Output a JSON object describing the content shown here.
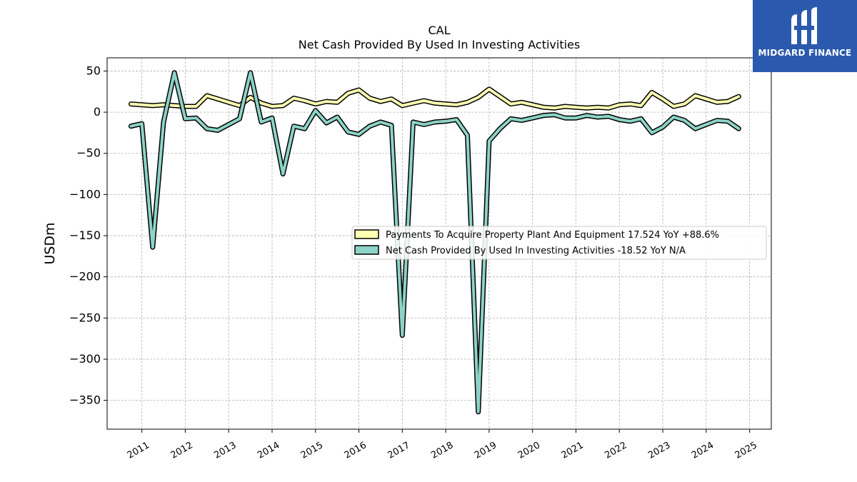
{
  "logo": {
    "text": "MIDGARD FINANCE"
  },
  "chart_data": {
    "type": "line",
    "title": "CAL",
    "subtitle": "Net Cash Provided By Used In Investing Activities",
    "ylabel": "USDm",
    "xlabel": "",
    "ylim": [
      -385,
      66
    ],
    "xlim": [
      2010.2,
      2025.5
    ],
    "yticks": [
      50,
      0,
      -50,
      -100,
      -150,
      -200,
      -250,
      -300,
      -350
    ],
    "ytick_labels": [
      "50",
      "0",
      "−50",
      "−100",
      "−150",
      "−200",
      "−250",
      "−300",
      "−350"
    ],
    "xticks": [
      2011,
      2012,
      2013,
      2014,
      2015,
      2016,
      2017,
      2018,
      2019,
      2020,
      2021,
      2022,
      2023,
      2024,
      2025
    ],
    "xtick_labels": [
      "2011",
      "2012",
      "2013",
      "2014",
      "2015",
      "2016",
      "2017",
      "2018",
      "2019",
      "2020",
      "2021",
      "2022",
      "2023",
      "2024",
      "2025"
    ],
    "grid": true,
    "legend_position": "center-right",
    "series": [
      {
        "name": "Payments To Acquire Property Plant And Equipment  17.524 YoY +88.6%",
        "color": "#ffffb3",
        "x": [
          2010.75,
          2011.0,
          2011.25,
          2011.5,
          2011.75,
          2012.0,
          2012.25,
          2012.5,
          2012.75,
          2013.0,
          2013.25,
          2013.5,
          2013.75,
          2014.0,
          2014.25,
          2014.5,
          2014.75,
          2015.0,
          2015.25,
          2015.5,
          2015.75,
          2016.0,
          2016.25,
          2016.5,
          2016.75,
          2017.0,
          2017.25,
          2017.5,
          2017.75,
          2018.0,
          2018.25,
          2018.5,
          2018.75,
          2019.0,
          2019.25,
          2019.5,
          2019.75,
          2020.0,
          2020.25,
          2020.5,
          2020.75,
          2021.0,
          2021.25,
          2021.5,
          2021.75,
          2022.0,
          2022.25,
          2022.5,
          2022.75,
          2023.0,
          2023.25,
          2023.5,
          2023.75,
          2024.0,
          2024.25,
          2024.5,
          2024.75
        ],
        "y": [
          10,
          9,
          8,
          9,
          8,
          7,
          7,
          20,
          16,
          12,
          8,
          18,
          11,
          7,
          8,
          17,
          14,
          10,
          13,
          12,
          23,
          27,
          17,
          13,
          16,
          8,
          11,
          14,
          11,
          10,
          9,
          12,
          18,
          28,
          19,
          10,
          12,
          9,
          6,
          5,
          7,
          6,
          5,
          6,
          5,
          9,
          10,
          8,
          24,
          16,
          7,
          10,
          20,
          16,
          12,
          13,
          19
        ]
      },
      {
        "name": "Net Cash Provided By Used In Investing Activities  -18.52 YoY N/A",
        "color": "#8dd3c7",
        "x": [
          2010.75,
          2011.0,
          2011.25,
          2011.5,
          2011.75,
          2012.0,
          2012.25,
          2012.5,
          2012.75,
          2013.0,
          2013.25,
          2013.5,
          2013.75,
          2014.0,
          2014.25,
          2014.5,
          2014.75,
          2015.0,
          2015.25,
          2015.5,
          2015.75,
          2016.0,
          2016.25,
          2016.5,
          2016.75,
          2017.0,
          2017.25,
          2017.5,
          2017.75,
          2018.0,
          2018.25,
          2018.5,
          2018.75,
          2019.0,
          2019.25,
          2019.5,
          2019.75,
          2020.0,
          2020.25,
          2020.5,
          2020.75,
          2021.0,
          2021.25,
          2021.5,
          2021.75,
          2022.0,
          2022.25,
          2022.5,
          2022.75,
          2023.0,
          2023.25,
          2023.5,
          2023.75,
          2024.0,
          2024.25,
          2024.5,
          2024.75
        ],
        "y": [
          -17,
          -14,
          -164,
          -12,
          48,
          -8,
          -7,
          -20,
          -22,
          -15,
          -8,
          48,
          -12,
          -7,
          -75,
          -17,
          -20,
          2,
          -13,
          -6,
          -24,
          -27,
          -17,
          -12,
          -16,
          -271,
          -12,
          -15,
          -12,
          -11,
          -9,
          -28,
          -364,
          -35,
          -20,
          -8,
          -10,
          -7,
          -4,
          -3,
          -7,
          -7,
          -4,
          -6,
          -5,
          -9,
          -11,
          -8,
          -25,
          -18,
          -6,
          -10,
          -20,
          -15,
          -10,
          -11,
          -20
        ]
      }
    ]
  }
}
